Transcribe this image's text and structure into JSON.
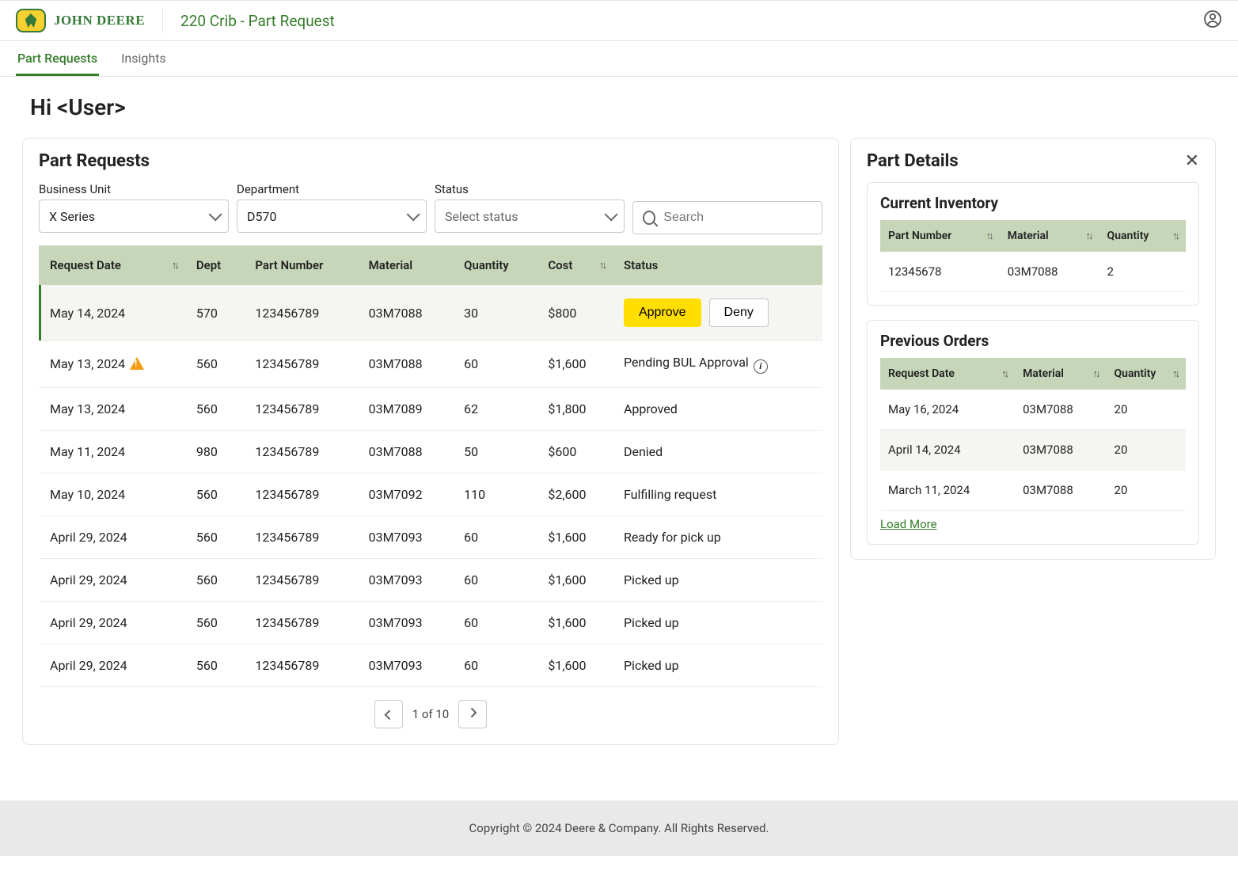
{
  "header": {
    "brand_text": "John Deere",
    "page_title": "220 Crib - Part Request",
    "colors": {
      "brand_green": "#367c2b",
      "brand_yellow": "#f8d02f"
    }
  },
  "tabs": [
    {
      "label": "Part Requests",
      "active": true
    },
    {
      "label": "Insights",
      "active": false
    }
  ],
  "greeting": "Hi <User>",
  "part_requests": {
    "title": "Part Requests",
    "filters": {
      "business_unit": {
        "label": "Business Unit",
        "value": "X Series"
      },
      "department": {
        "label": "Department",
        "value": "D570"
      },
      "status": {
        "label": "Status",
        "placeholder": "Select status"
      },
      "search_placeholder": "Search"
    },
    "columns": [
      "Request Date",
      "Dept",
      "Part Number",
      "Material",
      "Quantity",
      "Cost",
      "Status"
    ],
    "sortable_columns": [
      "Request Date",
      "Cost"
    ],
    "table_header_bg": "#c7d6b9",
    "rows": [
      {
        "date": "May 14, 2024",
        "dept": "570",
        "part": "123456789",
        "material": "03M7088",
        "qty": "30",
        "cost": "$800",
        "status": "action",
        "selected": true
      },
      {
        "date": "May 13, 2024",
        "dept": "560",
        "part": "123456789",
        "material": "03M7088",
        "qty": "60",
        "cost": "$1,600",
        "status": "Pending BUL Approval",
        "flag": "warn",
        "info": true
      },
      {
        "date": "May 13, 2024",
        "dept": "560",
        "part": "123456789",
        "material": "03M7089",
        "qty": "62",
        "cost": "$1,800",
        "status": "Approved"
      },
      {
        "date": "May 11, 2024",
        "dept": "980",
        "part": "123456789",
        "material": "03M7088",
        "qty": "50",
        "cost": "$600",
        "status": "Denied"
      },
      {
        "date": "May 10, 2024",
        "dept": "560",
        "part": "123456789",
        "material": "03M7092",
        "qty": "110",
        "cost": "$2,600",
        "status": "Fulfilling request"
      },
      {
        "date": "April 29, 2024",
        "dept": "560",
        "part": "123456789",
        "material": "03M7093",
        "qty": "60",
        "cost": "$1,600",
        "status": "Ready for pick up"
      },
      {
        "date": "April 29, 2024",
        "dept": "560",
        "part": "123456789",
        "material": "03M7093",
        "qty": "60",
        "cost": "$1,600",
        "status": "Picked up"
      },
      {
        "date": "April 29, 2024",
        "dept": "560",
        "part": "123456789",
        "material": "03M7093",
        "qty": "60",
        "cost": "$1,600",
        "status": "Picked up"
      },
      {
        "date": "April 29, 2024",
        "dept": "560",
        "part": "123456789",
        "material": "03M7093",
        "qty": "60",
        "cost": "$1,600",
        "status": "Picked up"
      }
    ],
    "action_labels": {
      "approve": "Approve",
      "deny": "Deny"
    },
    "pagination": {
      "label": "1 of 10"
    }
  },
  "part_details": {
    "title": "Part Details",
    "current_inventory": {
      "title": "Current Inventory",
      "columns": [
        "Part Number",
        "Material",
        "Quantity"
      ],
      "rows": [
        {
          "part": "12345678",
          "material": "03M7088",
          "qty": "2"
        }
      ]
    },
    "previous_orders": {
      "title": "Previous Orders",
      "columns": [
        "Request Date",
        "Material",
        "Quantity"
      ],
      "rows": [
        {
          "date": "May 16, 2024",
          "material": "03M7088",
          "qty": "20",
          "alt": false
        },
        {
          "date": "April 14, 2024",
          "material": "03M7088",
          "qty": "20",
          "alt": true
        },
        {
          "date": "March 11, 2024",
          "material": "03M7088",
          "qty": "20",
          "alt": false
        }
      ],
      "load_more": "Load More"
    }
  },
  "footer": "Copyright © 2024 Deere & Company. All Rights Reserved."
}
